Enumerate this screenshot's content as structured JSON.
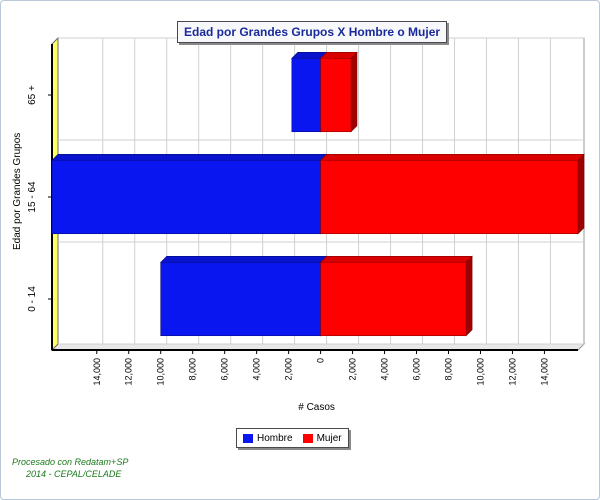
{
  "chart_data": {
    "type": "bar",
    "orientation": "horizontal",
    "layout": "population-pyramid",
    "title": "Edad por Grandes Grupos X Hombre o Mujer",
    "ylabel": "Edad por Grandes Grupos",
    "xlabel": "# Casos",
    "categories": [
      "65 +",
      "15 - 64",
      "0 - 14"
    ],
    "series": [
      {
        "name": "Hombre",
        "values": [
          1800,
          16800,
          10000
        ],
        "color": "#0a16f0"
      },
      {
        "name": "Mujer",
        "values": [
          1900,
          16100,
          9100
        ],
        "color": "#ff0000"
      }
    ],
    "xticks": [
      14000,
      12000,
      10000,
      8000,
      6000,
      4000,
      2000,
      0,
      2000,
      4000,
      6000,
      8000,
      10000,
      12000,
      14000
    ],
    "xtick_labels": [
      "14,000",
      "12,000",
      "10,000",
      "8,000",
      "6,000",
      "4,000",
      "2,000",
      "0",
      "2,000",
      "4,000",
      "6,000",
      "8,000",
      "10,000",
      "12,000",
      "14,000"
    ],
    "xlim": [
      -16800,
      16100
    ],
    "grid": true,
    "legend_position": "bottom-center"
  },
  "footer": {
    "line1": "Procesado con Redatam+SP",
    "line2": "2014 - CEPAL/CELADE"
  }
}
